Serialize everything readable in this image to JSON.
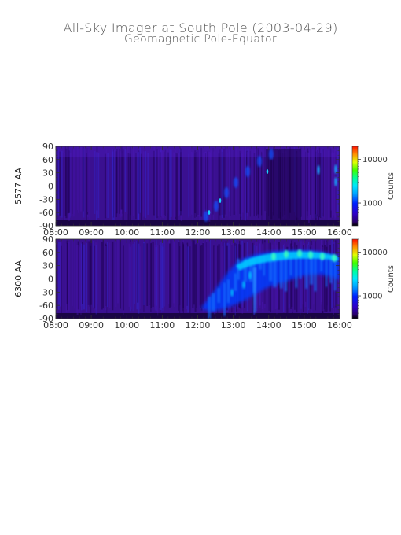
{
  "title": "All-Sky Imager at South Pole (2003-04-29)",
  "subtitle": "Geomagnetic Pole-Equator",
  "chart_data": [
    {
      "type": "heatmap",
      "ylabel": "5577 AA",
      "x_ticks": [
        "08:00",
        "09:00",
        "10:00",
        "11:00",
        "12:00",
        "13:00",
        "14:00",
        "15:00",
        "16:00"
      ],
      "y_ticks": [
        "90",
        "60",
        "30",
        "0",
        "-30",
        "-60",
        "-90"
      ],
      "xlim": [
        "08:00",
        "16:00"
      ],
      "ylim": [
        -90,
        90
      ],
      "colorbar": {
        "label": "Counts",
        "ticks": [
          "10000",
          "1000"
        ],
        "scale": "log"
      }
    },
    {
      "type": "heatmap",
      "ylabel": "6300 AA",
      "x_ticks": [
        "08:00",
        "09:00",
        "10:00",
        "11:00",
        "12:00",
        "13:00",
        "14:00",
        "15:00",
        "16:00"
      ],
      "y_ticks": [
        "90",
        "60",
        "30",
        "0",
        "-30",
        "-60",
        "-90"
      ],
      "xlim": [
        "08:00",
        "16:00"
      ],
      "ylim": [
        -90,
        90
      ],
      "colorbar": {
        "label": "Counts",
        "ticks": [
          "10000",
          "1000"
        ],
        "scale": "log"
      }
    }
  ]
}
